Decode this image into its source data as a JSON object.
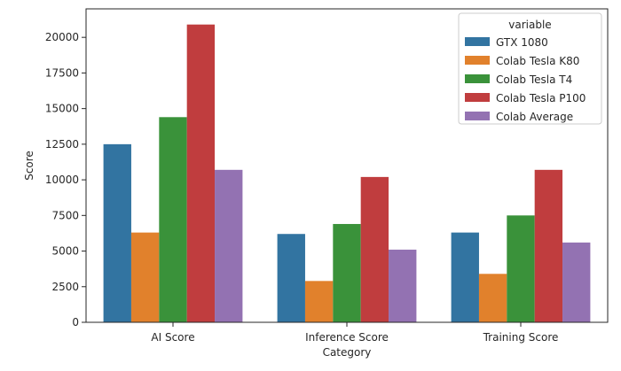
{
  "chart_data": {
    "type": "bar",
    "xlabel": "Category",
    "ylabel": "Score",
    "ylim": [
      0,
      22000
    ],
    "yticks": [
      0,
      2500,
      5000,
      7500,
      10000,
      12500,
      15000,
      17500,
      20000
    ],
    "grid": false,
    "legend": {
      "title": "variable",
      "placement": "top-right"
    },
    "categories": [
      "AI Score",
      "Inference Score",
      "Training Score"
    ],
    "series": [
      {
        "name": "GTX 1080",
        "color": "#3274a1",
        "values": [
          12500,
          6200,
          6300
        ]
      },
      {
        "name": "Colab Tesla K80",
        "color": "#e1812c",
        "values": [
          6300,
          2900,
          3400
        ]
      },
      {
        "name": "Colab Tesla T4",
        "color": "#3a923a",
        "values": [
          14400,
          6900,
          7500
        ]
      },
      {
        "name": "Colab Tesla P100",
        "color": "#c03d3e",
        "values": [
          20900,
          10200,
          10700
        ]
      },
      {
        "name": "Colab Average",
        "color": "#9372b2",
        "values": [
          10700,
          5100,
          5600
        ]
      }
    ]
  }
}
